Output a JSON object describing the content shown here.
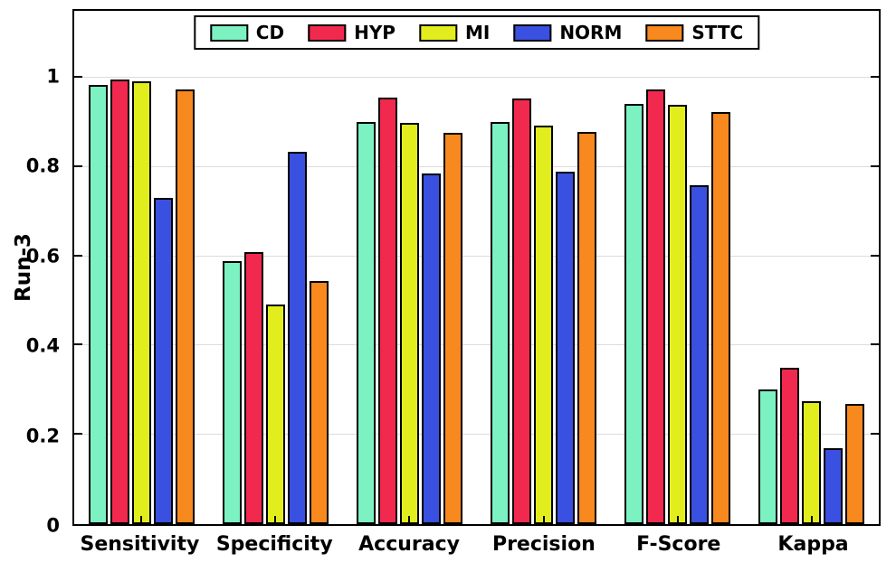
{
  "chart_data": {
    "type": "bar",
    "title": "",
    "xlabel": "",
    "ylabel": "Run-3",
    "ylim": [
      0,
      1.15
    ],
    "grid": true,
    "legend_position": "top-center",
    "yticks": {
      "values": [
        0,
        0.2,
        0.4,
        0.6,
        0.8,
        1
      ],
      "labels": [
        "0",
        "0.2",
        "0.4",
        "0.6",
        "0.8",
        "1"
      ]
    },
    "categories": [
      "Sensitivity",
      "Specificity",
      "Accuracy",
      "Precision",
      "F-Score",
      "Kappa"
    ],
    "series": [
      {
        "name": "CD",
        "color": "#7CF2C3",
        "values": [
          0.985,
          0.59,
          0.902,
          0.9,
          0.941,
          0.301
        ]
      },
      {
        "name": "HYP",
        "color": "#F2294E",
        "values": [
          0.997,
          0.61,
          0.956,
          0.954,
          0.974,
          0.35
        ]
      },
      {
        "name": "MI",
        "color": "#E2ED1E",
        "values": [
          0.993,
          0.492,
          0.898,
          0.893,
          0.94,
          0.276
        ]
      },
      {
        "name": "NORM",
        "color": "#3A50E0",
        "values": [
          0.73,
          0.835,
          0.786,
          0.79,
          0.76,
          0.171
        ]
      },
      {
        "name": "STTC",
        "color": "#F8891F",
        "values": [
          0.974,
          0.544,
          0.877,
          0.879,
          0.924,
          0.27
        ]
      }
    ]
  }
}
